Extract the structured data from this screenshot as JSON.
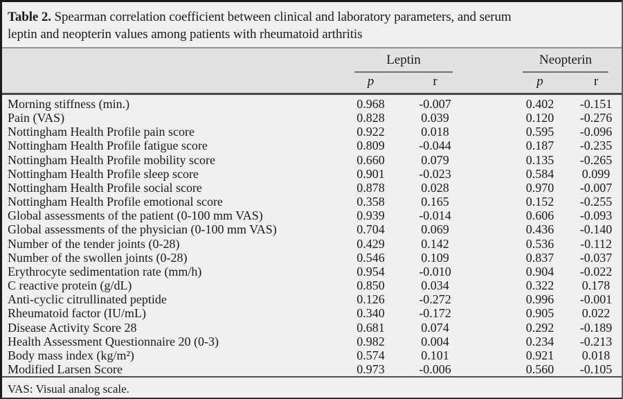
{
  "caption": {
    "label": "Table 2.",
    "line1_rest": " Spearman correlation coefficient between clinical and laboratory parameters, and serum",
    "line2": "leptin and neopterin values among patients with rheumatoid arthritis"
  },
  "columns": {
    "groups": [
      "Leptin",
      "Neopterin"
    ],
    "sub": [
      "p",
      "r",
      "p",
      "r"
    ]
  },
  "rows": [
    {
      "label": "Morning stiffness (min.)",
      "values": [
        "0.968",
        "-0.007",
        "0.402",
        "-0.151"
      ]
    },
    {
      "label": "Pain (VAS)",
      "values": [
        "0.828",
        "0.039",
        "0.120",
        "-0.276"
      ]
    },
    {
      "label": "Nottingham Health Profile pain score",
      "values": [
        "0.922",
        "0.018",
        "0.595",
        "-0.096"
      ]
    },
    {
      "label": "Nottingham Health Profile fatigue score",
      "values": [
        "0.809",
        "-0.044",
        "0.187",
        "-0.235"
      ]
    },
    {
      "label": "Nottingham Health Profile mobility score",
      "values": [
        "0.660",
        "0.079",
        "0.135",
        "-0.265"
      ]
    },
    {
      "label": "Nottingham Health Profile sleep score",
      "values": [
        "0.901",
        "-0.023",
        "0.584",
        "0.099"
      ]
    },
    {
      "label": "Nottingham Health Profile social score",
      "values": [
        "0.878",
        "0.028",
        "0.970",
        "-0.007"
      ]
    },
    {
      "label": "Nottingham Health Profile emotional score",
      "values": [
        "0.358",
        "0.165",
        "0.152",
        "-0.255"
      ]
    },
    {
      "label": "Global assessments of the patient (0-100 mm VAS)",
      "values": [
        "0.939",
        "-0.014",
        "0.606",
        "-0.093"
      ]
    },
    {
      "label": "Global assessments of the physician (0-100 mm VAS)",
      "values": [
        "0.704",
        "0.069",
        "0.436",
        "-0.140"
      ]
    },
    {
      "label": "Number of the tender joints (0-28)",
      "values": [
        "0.429",
        "0.142",
        "0.536",
        "-0.112"
      ]
    },
    {
      "label": "Number of the swollen joints (0-28)",
      "values": [
        "0.546",
        "0.109",
        "0.837",
        "-0.037"
      ]
    },
    {
      "label": "Erythrocyte sedimentation rate (mm/h)",
      "values": [
        "0.954",
        "-0.010",
        "0.904",
        "-0.022"
      ]
    },
    {
      "label": "C reactive protein (g/dL)",
      "values": [
        "0.850",
        "0.034",
        "0.322",
        "0.178"
      ]
    },
    {
      "label": "Anti-cyclic citrullinated peptide",
      "values": [
        "0.126",
        "-0.272",
        "0.996",
        "-0.001"
      ]
    },
    {
      "label": "Rheumatoid factor (IU/mL)",
      "values": [
        "0.340",
        "-0.172",
        "0.905",
        "0.022"
      ]
    },
    {
      "label": "Disease Activity Score 28",
      "values": [
        "0.681",
        "0.074",
        "0.292",
        "-0.189"
      ]
    },
    {
      "label": "Health Assessment Questionnaire 20 (0-3)",
      "values": [
        "0.982",
        "0.004",
        "0.234",
        "-0.213"
      ]
    },
    {
      "label": "Body mass index (kg/m²)",
      "values": [
        "0.574",
        "0.101",
        "0.921",
        "0.018"
      ]
    },
    {
      "label": "Modified Larsen Score",
      "values": [
        "0.973",
        "-0.006",
        "0.560",
        "-0.105"
      ]
    }
  ],
  "footnote": "VAS: Visual analog scale."
}
